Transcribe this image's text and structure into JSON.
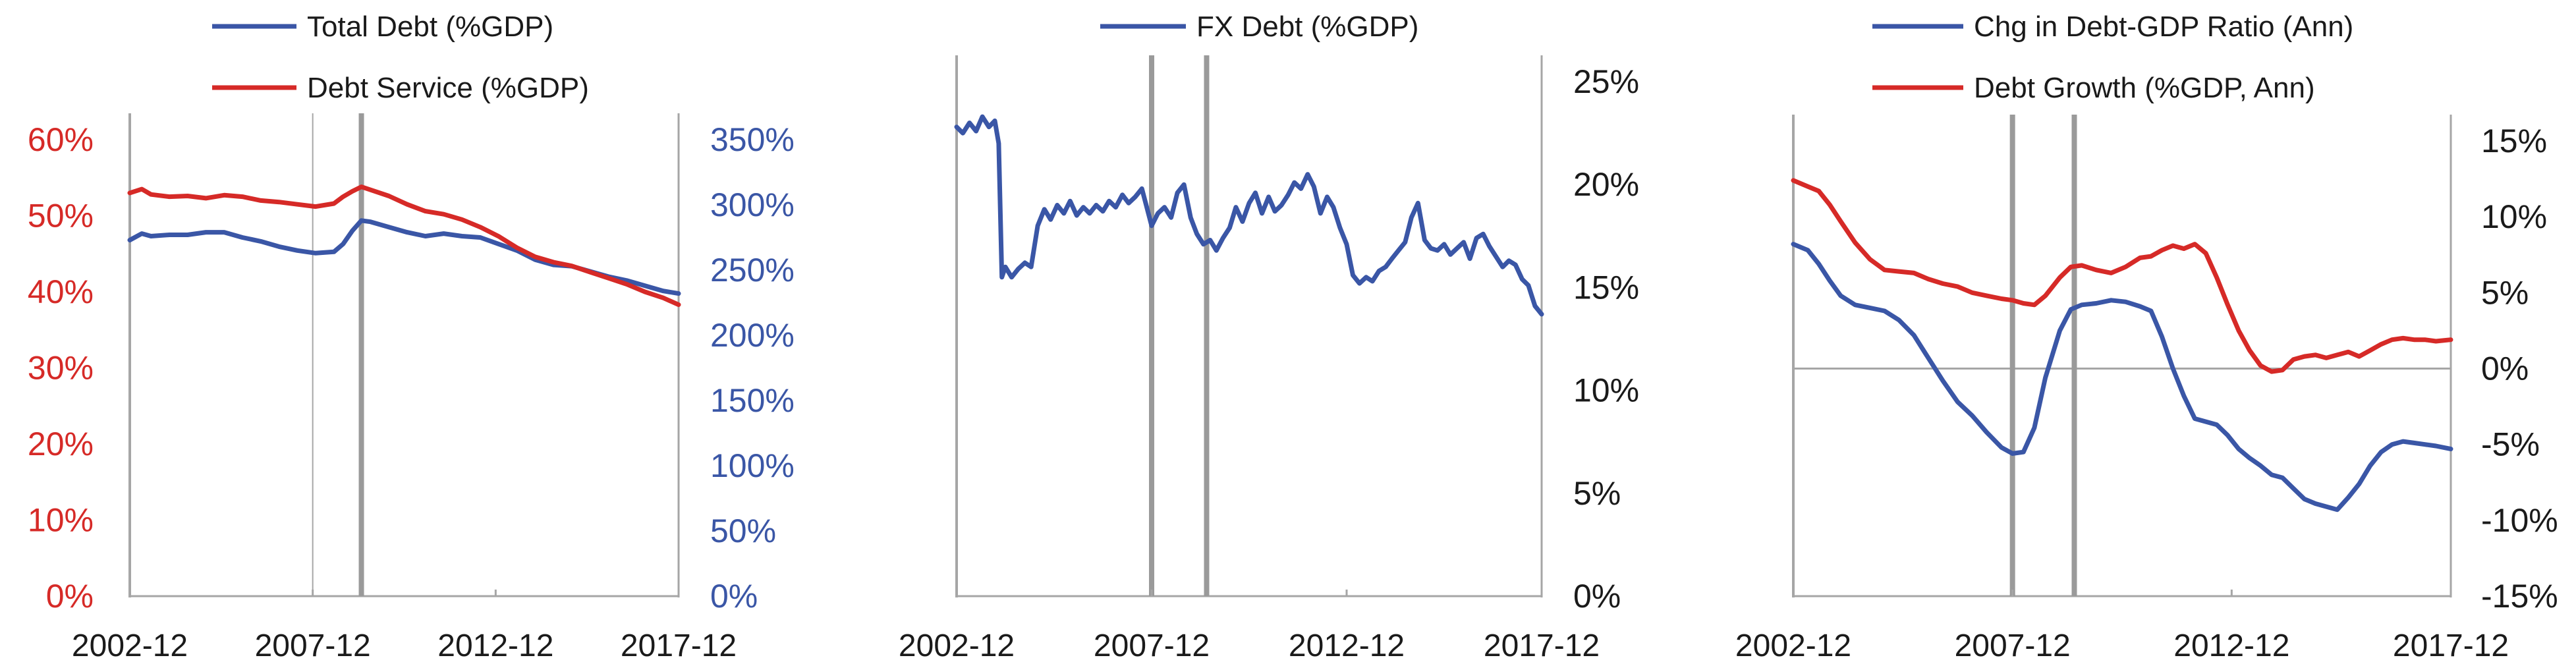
{
  "colors": {
    "blue": "#3a56a6",
    "red": "#d62a27",
    "axis": "#a6a6a6",
    "vline": "#9a9a9a",
    "text": "#1a1a1a"
  },
  "x_tick_labels": [
    "2002-12",
    "2007-12",
    "2012-12",
    "2017-12"
  ],
  "chart_data": [
    {
      "type": "line",
      "title": "",
      "x_range": [
        2002.92,
        2017.92
      ],
      "vlines": [
        2007.92,
        2009.25
      ],
      "y_left": {
        "range": [
          0,
          60
        ],
        "ticks": [
          "0%",
          "10%",
          "20%",
          "30%",
          "40%",
          "50%",
          "60%"
        ],
        "color": "#d62a27"
      },
      "y_right": {
        "range": [
          0,
          350
        ],
        "ticks": [
          "0%",
          "50%",
          "100%",
          "150%",
          "200%",
          "250%",
          "300%",
          "350%"
        ],
        "color": "#3a56a6"
      },
      "legend": [
        "Total Debt (%GDP)",
        "Debt Service (%GDP)"
      ],
      "series": [
        {
          "name": "Total Debt (%GDP)",
          "axis": "right",
          "color": "#3a56a6",
          "x": [
            2002.92,
            2003.25,
            2003.5,
            2004.0,
            2004.5,
            2005.0,
            2005.5,
            2006.0,
            2006.5,
            2007.0,
            2007.5,
            2008.0,
            2008.5,
            2008.75,
            2009.0,
            2009.25,
            2009.5,
            2010.0,
            2010.5,
            2011.0,
            2011.5,
            2012.0,
            2012.5,
            2013.0,
            2013.5,
            2014.0,
            2014.5,
            2015.0,
            2015.5,
            2016.0,
            2016.5,
            2017.0,
            2017.5,
            2017.92
          ],
          "y": [
            273,
            278,
            276,
            277,
            277,
            279,
            279,
            275,
            272,
            268,
            265,
            263,
            264,
            270,
            280,
            288,
            287,
            283,
            279,
            276,
            278,
            276,
            275,
            270,
            265,
            258,
            254,
            253,
            249,
            245,
            242,
            238,
            234,
            232
          ]
        },
        {
          "name": "Debt Service (%GDP)",
          "axis": "left",
          "color": "#d62a27",
          "x": [
            2002.92,
            2003.25,
            2003.5,
            2004.0,
            2004.5,
            2005.0,
            2005.5,
            2006.0,
            2006.5,
            2007.0,
            2007.5,
            2008.0,
            2008.5,
            2008.75,
            2009.0,
            2009.25,
            2009.5,
            2010.0,
            2010.5,
            2011.0,
            2011.5,
            2012.0,
            2012.5,
            2013.0,
            2013.5,
            2014.0,
            2014.5,
            2015.0,
            2015.5,
            2016.0,
            2016.5,
            2017.0,
            2017.5,
            2017.92
          ],
          "y": [
            53.0,
            53.5,
            52.8,
            52.5,
            52.6,
            52.3,
            52.7,
            52.5,
            52.0,
            51.8,
            51.5,
            51.2,
            51.6,
            52.5,
            53.2,
            53.8,
            53.4,
            52.6,
            51.5,
            50.6,
            50.2,
            49.5,
            48.5,
            47.3,
            45.8,
            44.6,
            43.9,
            43.4,
            42.6,
            41.8,
            41.0,
            40.0,
            39.2,
            38.3
          ]
        }
      ]
    },
    {
      "type": "line",
      "title": "",
      "x_range": [
        2002.92,
        2017.92
      ],
      "vlines": [
        2007.92,
        2009.33
      ],
      "y_right": {
        "range": [
          0,
          25
        ],
        "ticks": [
          "0%",
          "5%",
          "10%",
          "15%",
          "20%",
          "25%"
        ],
        "color": "#1a1a1a"
      },
      "legend": [
        "FX Debt (%GDP)"
      ],
      "series": [
        {
          "name": "FX Debt (%GDP)",
          "axis": "right",
          "color": "#3a56a6",
          "x": [
            2002.92,
            2003.08,
            2003.25,
            2003.42,
            2003.58,
            2003.75,
            2003.9,
            2004.0,
            2004.08,
            2004.17,
            2004.33,
            2004.5,
            2004.67,
            2004.83,
            2005.0,
            2005.17,
            2005.33,
            2005.5,
            2005.67,
            2005.83,
            2006.0,
            2006.17,
            2006.33,
            2006.5,
            2006.67,
            2006.83,
            2007.0,
            2007.17,
            2007.33,
            2007.5,
            2007.67,
            2007.92,
            2008.08,
            2008.25,
            2008.42,
            2008.58,
            2008.75,
            2008.92,
            2009.08,
            2009.25,
            2009.42,
            2009.58,
            2009.75,
            2009.92,
            2010.08,
            2010.25,
            2010.42,
            2010.58,
            2010.75,
            2010.92,
            2011.08,
            2011.25,
            2011.42,
            2011.58,
            2011.75,
            2011.92,
            2012.08,
            2012.25,
            2012.42,
            2012.58,
            2012.75,
            2012.92,
            2013.08,
            2013.25,
            2013.42,
            2013.58,
            2013.75,
            2013.92,
            2014.08,
            2014.25,
            2014.42,
            2014.58,
            2014.75,
            2014.92,
            2015.08,
            2015.25,
            2015.42,
            2015.58,
            2015.75,
            2015.92,
            2016.08,
            2016.25,
            2016.42,
            2016.58,
            2016.75,
            2016.92,
            2017.08,
            2017.25,
            2017.42,
            2017.58,
            2017.75,
            2017.92
          ],
          "y": [
            22.8,
            22.5,
            23.0,
            22.6,
            23.3,
            22.8,
            23.1,
            22.0,
            15.5,
            16.0,
            15.5,
            15.9,
            16.2,
            16.0,
            18.0,
            18.8,
            18.3,
            19.0,
            18.6,
            19.2,
            18.5,
            18.9,
            18.6,
            19.0,
            18.7,
            19.2,
            18.9,
            19.5,
            19.1,
            19.4,
            19.8,
            18.0,
            18.6,
            18.9,
            18.4,
            19.6,
            20.0,
            18.4,
            17.6,
            17.1,
            17.3,
            16.8,
            17.4,
            17.9,
            18.9,
            18.2,
            19.1,
            19.6,
            18.6,
            19.4,
            18.7,
            19.0,
            19.5,
            20.1,
            19.8,
            20.5,
            19.9,
            18.6,
            19.4,
            18.9,
            17.9,
            17.1,
            15.6,
            15.2,
            15.5,
            15.3,
            15.8,
            16.0,
            16.4,
            16.8,
            17.2,
            18.4,
            19.1,
            17.3,
            16.9,
            16.8,
            17.1,
            16.6,
            16.9,
            17.2,
            16.4,
            17.4,
            17.6,
            17.0,
            16.5,
            16.0,
            16.3,
            16.1,
            15.4,
            15.1,
            14.1,
            13.7
          ]
        }
      ]
    },
    {
      "type": "line",
      "title": "",
      "x_range": [
        2002.92,
        2017.92
      ],
      "vlines": [
        2007.92,
        2009.33
      ],
      "y_right": {
        "range": [
          -15,
          15
        ],
        "ticks": [
          "-15%",
          "-10%",
          "-5%",
          "0%",
          "5%",
          "10%",
          "15%"
        ],
        "color": "#1a1a1a"
      },
      "legend": [
        "Chg in Debt-GDP Ratio (Ann)",
        "Debt Growth (%GDP, Ann)"
      ],
      "series": [
        {
          "name": "Chg in Debt-GDP Ratio (Ann)",
          "axis": "right",
          "color": "#3a56a6",
          "x": [
            2002.92,
            2003.25,
            2003.5,
            2003.75,
            2004.0,
            2004.33,
            2004.67,
            2005.0,
            2005.33,
            2005.67,
            2006.0,
            2006.33,
            2006.67,
            2007.0,
            2007.33,
            2007.67,
            2007.92,
            2008.17,
            2008.42,
            2008.67,
            2009.0,
            2009.25,
            2009.5,
            2009.83,
            2010.17,
            2010.5,
            2010.83,
            2011.08,
            2011.33,
            2011.58,
            2011.83,
            2012.08,
            2012.33,
            2012.58,
            2012.83,
            2013.08,
            2013.33,
            2013.58,
            2013.83,
            2014.08,
            2014.33,
            2014.58,
            2014.83,
            2015.08,
            2015.33,
            2015.58,
            2015.83,
            2016.08,
            2016.33,
            2016.58,
            2016.83,
            2017.08,
            2017.33,
            2017.58,
            2017.92
          ],
          "y": [
            8.2,
            7.8,
            6.9,
            5.8,
            4.8,
            4.2,
            4.0,
            3.8,
            3.2,
            2.2,
            0.7,
            -0.8,
            -2.2,
            -3.1,
            -4.2,
            -5.2,
            -5.6,
            -5.5,
            -3.9,
            -0.6,
            2.5,
            3.9,
            4.2,
            4.3,
            4.5,
            4.4,
            4.1,
            3.8,
            2.1,
            0.0,
            -1.8,
            -3.3,
            -3.5,
            -3.7,
            -4.4,
            -5.3,
            -5.9,
            -6.4,
            -7.0,
            -7.2,
            -7.9,
            -8.6,
            -8.9,
            -9.1,
            -9.3,
            -8.5,
            -7.6,
            -6.4,
            -5.5,
            -5.0,
            -4.8,
            -4.9,
            -5.0,
            -5.1,
            -5.3
          ]
        },
        {
          "name": "Debt Growth (%GDP, Ann)",
          "axis": "right",
          "color": "#d62a27",
          "x": [
            2002.92,
            2003.25,
            2003.5,
            2003.75,
            2004.0,
            2004.33,
            2004.67,
            2005.0,
            2005.33,
            2005.67,
            2006.0,
            2006.33,
            2006.67,
            2007.0,
            2007.33,
            2007.67,
            2007.92,
            2008.17,
            2008.42,
            2008.67,
            2009.0,
            2009.25,
            2009.5,
            2009.83,
            2010.17,
            2010.5,
            2010.83,
            2011.08,
            2011.33,
            2011.58,
            2011.83,
            2012.08,
            2012.33,
            2012.58,
            2012.83,
            2013.08,
            2013.33,
            2013.58,
            2013.83,
            2014.08,
            2014.33,
            2014.58,
            2014.83,
            2015.08,
            2015.33,
            2015.58,
            2015.83,
            2016.08,
            2016.33,
            2016.58,
            2016.83,
            2017.08,
            2017.33,
            2017.58,
            2017.92
          ],
          "y": [
            12.4,
            12.0,
            11.7,
            10.8,
            9.7,
            8.3,
            7.2,
            6.5,
            6.4,
            6.3,
            5.9,
            5.6,
            5.4,
            5.0,
            4.8,
            4.6,
            4.5,
            4.3,
            4.2,
            4.8,
            6.0,
            6.7,
            6.8,
            6.5,
            6.3,
            6.7,
            7.3,
            7.4,
            7.8,
            8.1,
            7.9,
            8.2,
            7.6,
            6.0,
            4.2,
            2.5,
            1.2,
            0.2,
            -0.2,
            -0.1,
            0.6,
            0.8,
            0.9,
            0.7,
            0.9,
            1.1,
            0.8,
            1.2,
            1.6,
            1.9,
            2.0,
            1.9,
            1.9,
            1.8,
            1.9
          ]
        }
      ]
    }
  ]
}
